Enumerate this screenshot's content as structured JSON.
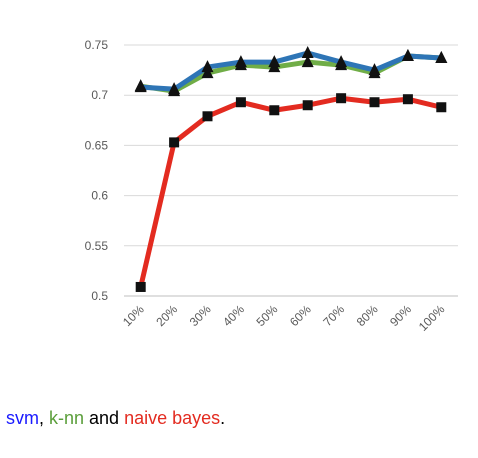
{
  "chart_data": {
    "type": "line",
    "categories": [
      "10%",
      "20%",
      "30%",
      "40%",
      "50%",
      "60%",
      "70%",
      "80%",
      "90%",
      "100%"
    ],
    "ylim": [
      0.5,
      0.75
    ],
    "yticks": [
      "0.5",
      "0.55",
      "0.6",
      "0.65",
      "0.7",
      "0.75"
    ],
    "ytick_values": [
      0.5,
      0.55,
      0.6,
      0.65,
      0.7,
      0.75
    ],
    "grid": true,
    "series": [
      {
        "key": "knn",
        "color": "#70ad47",
        "marker": "triangle",
        "values": [
          0.709,
          0.704,
          0.722,
          0.73,
          0.728,
          0.733,
          0.73,
          0.722,
          0.739,
          0.737
        ]
      },
      {
        "key": "svm",
        "color": "#2e75b6",
        "marker": "triangle",
        "values": [
          0.708,
          0.706,
          0.728,
          0.733,
          0.733,
          0.742,
          0.733,
          0.725,
          0.739,
          0.737
        ]
      },
      {
        "key": "nb",
        "color": "#e32b20",
        "marker": "square",
        "values": [
          0.509,
          0.653,
          0.679,
          0.693,
          0.685,
          0.69,
          0.697,
          0.693,
          0.696,
          0.688
        ]
      }
    ]
  },
  "caption": {
    "svm": "svm",
    "sep1": ", ",
    "knn": "k-nn",
    "sep2": " and ",
    "nb": "naive bayes",
    "end": ".",
    "colors": {
      "svm": "#1a1aff",
      "knn": "#5a9e3a",
      "nb": "#e32b20"
    }
  }
}
